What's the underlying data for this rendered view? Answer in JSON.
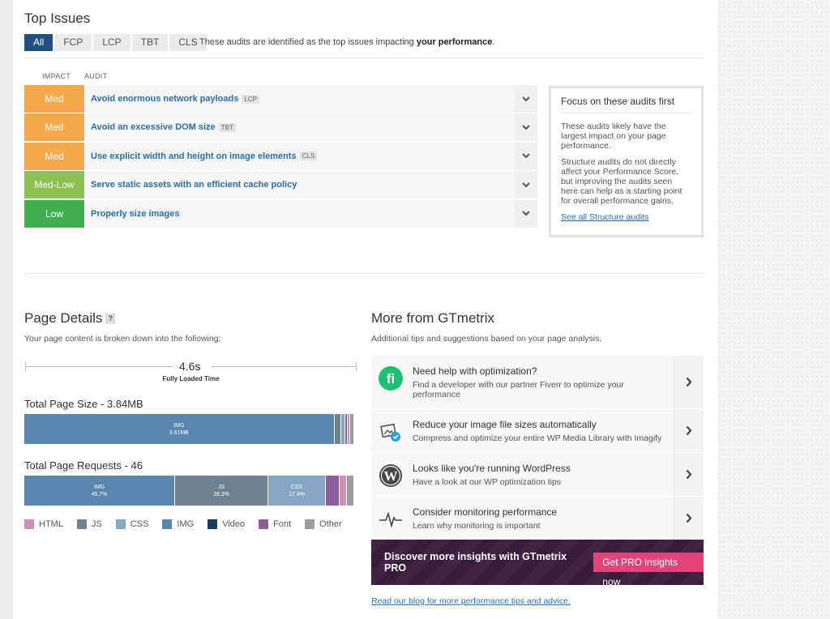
{
  "top_issues": {
    "title": "Top Issues",
    "tabs": [
      "All",
      "FCP",
      "LCP",
      "TBT",
      "CLS"
    ],
    "active_tab": "All",
    "description_prefix": "These audits are identified as the top issues impacting ",
    "description_bold": "your performance",
    "description_suffix": ".",
    "col_impact": "IMPACT",
    "col_audit": "AUDIT",
    "audits": [
      {
        "impact": "Med",
        "title": "Avoid enormous network payloads",
        "tag": "LCP",
        "color": "#f5a94a"
      },
      {
        "impact": "Med",
        "title": "Avoid an excessive DOM size",
        "tag": "TBT",
        "color": "#f5a94a"
      },
      {
        "impact": "Med",
        "title": "Use explicit width and height on image elements",
        "tag": "CLS",
        "color": "#f5a94a"
      },
      {
        "impact": "Med-Low",
        "title": "Serve static assets with an efficient cache policy",
        "tag": "",
        "color": "#8cc152"
      },
      {
        "impact": "Low",
        "title": "Properly size images",
        "tag": "",
        "color": "#3fb04c"
      }
    ],
    "focus": {
      "title": "Focus on these audits first",
      "p1": "These audits likely have the largest impact on your page performance.",
      "p2": "Structure audits do not directly affect your Performance Score, but improving the audits seen here can help as a starting point for overall performance gains.",
      "link": "See all Structure audits"
    }
  },
  "page_details": {
    "title": "Page Details",
    "help": "?",
    "subtitle": "Your page content is broken down into the following:",
    "fully_loaded_value": "4.6s",
    "fully_loaded_label": "Fully Loaded Time",
    "size_title": "Total Page Size - 3.84MB",
    "requests_title": "Total Page Requests - 46",
    "size_segments": [
      {
        "type": "IMG",
        "label": "IMG",
        "value": "3.61MB",
        "fraction": 0.94,
        "color": "#5a86ad"
      },
      {
        "type": "JS",
        "label": "",
        "value": "",
        "fraction": 0.02,
        "color": "#6f8191"
      },
      {
        "type": "CSS",
        "label": "",
        "value": "",
        "fraction": 0.012,
        "color": "#86a6c4"
      },
      {
        "type": "Font",
        "label": "",
        "value": "",
        "fraction": 0.008,
        "color": "#8e5e9b"
      },
      {
        "type": "HTML",
        "label": "",
        "value": "",
        "fraction": 0.008,
        "color": "#d08fb7"
      },
      {
        "type": "Other",
        "label": "",
        "value": "",
        "fraction": 0.012,
        "color": "#9c9c9c"
      }
    ],
    "request_segments": [
      {
        "type": "IMG",
        "label": "IMG",
        "value": "45.7%",
        "fraction": 0.457,
        "color": "#5a86ad"
      },
      {
        "type": "JS",
        "label": "JS",
        "value": "28.3%",
        "fraction": 0.283,
        "color": "#6f8191"
      },
      {
        "type": "CSS",
        "label": "CSS",
        "value": "17.4%",
        "fraction": 0.174,
        "color": "#86a6c4"
      },
      {
        "type": "Font",
        "label": "",
        "value": "",
        "fraction": 0.043,
        "color": "#8e5e9b"
      },
      {
        "type": "HTML",
        "label": "",
        "value": "",
        "fraction": 0.022,
        "color": "#d08fb7"
      },
      {
        "type": "Other",
        "label": "",
        "value": "",
        "fraction": 0.021,
        "color": "#9c9c9c"
      }
    ],
    "legend": [
      {
        "label": "HTML",
        "color": "#d08fb7"
      },
      {
        "label": "JS",
        "color": "#6f8191"
      },
      {
        "label": "CSS",
        "color": "#86a6c4"
      },
      {
        "label": "IMG",
        "color": "#5a86ad"
      },
      {
        "label": "Video",
        "color": "#1d3a5f"
      },
      {
        "label": "Font",
        "color": "#8e5e9b"
      },
      {
        "label": "Other",
        "color": "#9c9c9c"
      }
    ]
  },
  "more": {
    "title": "More from GTmetrix",
    "subtitle": "Additional tips and suggestions based on your page analysis.",
    "items": [
      {
        "icon": "fiverr-icon",
        "title": "Need help with optimization?",
        "desc": "Find a developer with our partner Fiverr to optimize your performance"
      },
      {
        "icon": "imagify-icon",
        "title": "Reduce your image file sizes automatically",
        "desc": "Compress and optimize your entire WP Media Library with Imagify"
      },
      {
        "icon": "wordpress-icon",
        "title": "Looks like you're running WordPress",
        "desc": "Have a look at our WP optimization tips"
      },
      {
        "icon": "pulse-icon",
        "title": "Consider monitoring performance",
        "desc": "Learn why monitoring is important"
      }
    ],
    "pro_text": "Discover more insights with GTmetrix PRO",
    "pro_button": "Get PRO insights now",
    "blog_link": "Read our blog for more performance tips and advice."
  }
}
